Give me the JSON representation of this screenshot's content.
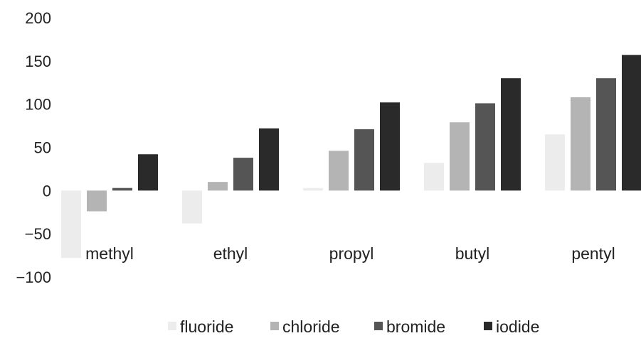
{
  "chart_data": {
    "type": "bar",
    "title": "",
    "xlabel": "",
    "ylabel": "",
    "categories": [
      "methyl",
      "ethyl",
      "propyl",
      "butyl",
      "pentyl"
    ],
    "series": [
      {
        "name": "fluoride",
        "values": [
          -78,
          -38,
          3,
          32,
          65
        ],
        "color": "#ececec"
      },
      {
        "name": "chloride",
        "values": [
          -24,
          10,
          46,
          79,
          108
        ],
        "color": "#b4b4b4"
      },
      {
        "name": "bromide",
        "values": [
          3,
          38,
          71,
          101,
          130
        ],
        "color": "#555555"
      },
      {
        "name": "iodide",
        "values": [
          42,
          72,
          102,
          130,
          157
        ],
        "color": "#2a2a2a"
      }
    ],
    "ylim": [
      -100,
      200
    ],
    "yticks": [
      -100,
      -50,
      0,
      50,
      100,
      150,
      200
    ],
    "ytick_labels": [
      "−100",
      "−50",
      "0",
      "50",
      "100",
      "150",
      "200"
    ],
    "grid": false,
    "legend_position": "bottom-center"
  }
}
